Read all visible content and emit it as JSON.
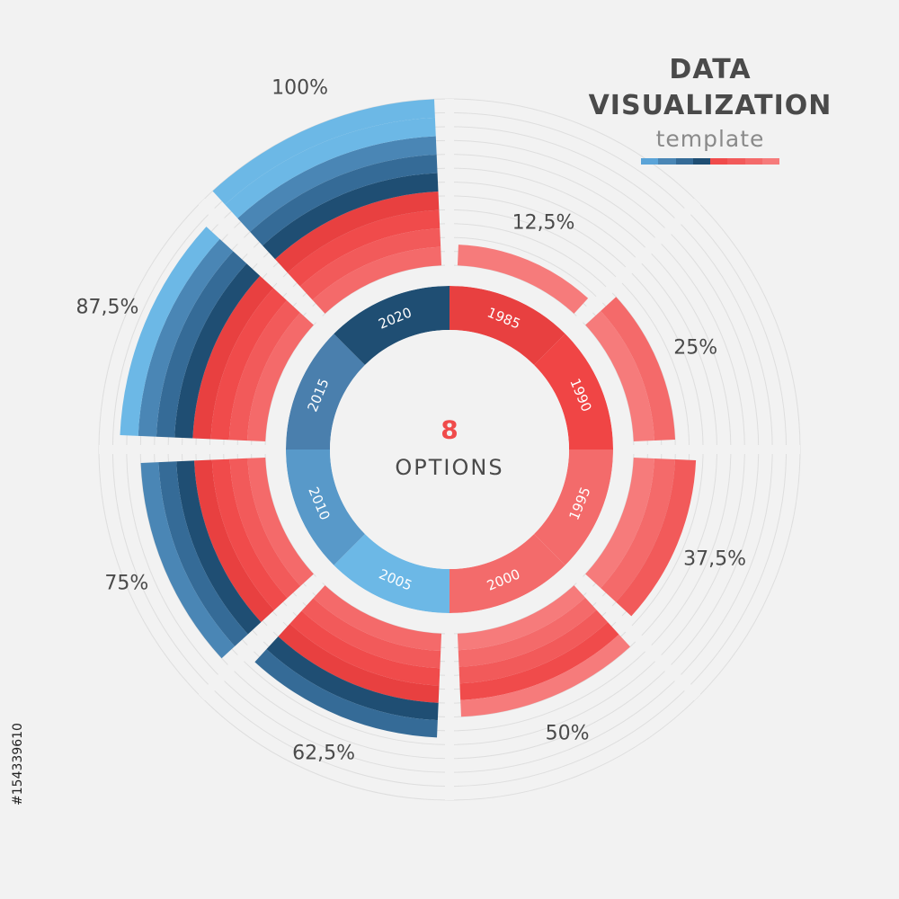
{
  "title": {
    "line1": "DATA",
    "line2": "VISUALIZATION",
    "line3": "template",
    "bar_colors": [
      "#5ba4d8",
      "#4a86b5",
      "#356b97",
      "#1f4e73",
      "#f04b4b",
      "#f25a5a",
      "#f46a6a",
      "#f67b7b"
    ]
  },
  "center": {
    "number": "8",
    "label": "OPTIONS"
  },
  "side_id": "#154339610",
  "chart_data": {
    "type": "radial-bar",
    "categories": [
      "1985",
      "1990",
      "1995",
      "2000",
      "2005",
      "2010",
      "2015",
      "2020"
    ],
    "values": [
      12.5,
      25,
      37.5,
      50,
      62.5,
      75,
      87.5,
      100
    ],
    "value_labels": [
      "12,5%",
      "25%",
      "37,5%",
      "50%",
      "62,5%",
      "75%",
      "87,5%",
      "100%"
    ],
    "category_colors": [
      "#e84040",
      "#f04545",
      "#f36b6b",
      "#f36b6b",
      "#6cb8e6",
      "#5899c9",
      "#4a7fad",
      "#1f4e73"
    ],
    "ring_colors": [
      "#f67b7b",
      "#f46a6a",
      "#f25a5a",
      "#f04b4b",
      "#2d5f88",
      "#3f7aa7",
      "#4e8ab8",
      "#6cb8e6"
    ],
    "max": 100
  }
}
